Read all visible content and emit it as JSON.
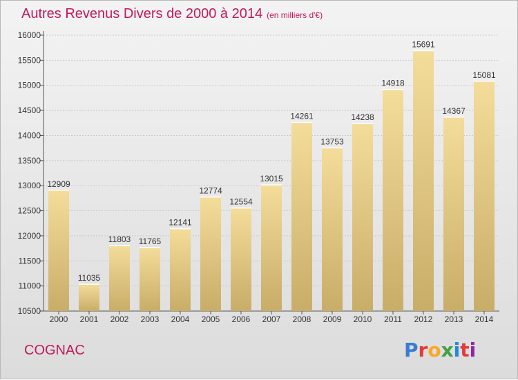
{
  "title": "Autres Revenus Divers de 2000 à 2014",
  "unit": "(en milliers d'€)",
  "city": "COGNAC",
  "brand": {
    "letters": [
      {
        "ch": "P",
        "color": "#3a7bd5"
      },
      {
        "ch": "r",
        "color": "#e53935"
      },
      {
        "ch": "o",
        "color": "#f9a825"
      },
      {
        "ch": "x",
        "color": "#43a047"
      },
      {
        "ch": "i",
        "color": "#1e88e5"
      },
      {
        "ch": "t",
        "color": "#e53935"
      },
      {
        "ch": "i",
        "color": "#8e24aa"
      }
    ]
  },
  "colors": {
    "title": "#c2185b",
    "bar_light": "#f4dc9a",
    "bar_dark": "#c8ad68",
    "grid": "#c9c9c9"
  },
  "chart_data": {
    "type": "bar",
    "categories": [
      "2000",
      "2001",
      "2002",
      "2003",
      "2004",
      "2005",
      "2006",
      "2007",
      "2008",
      "2009",
      "2010",
      "2011",
      "2012",
      "2013",
      "2014"
    ],
    "values": [
      12909,
      11035,
      11803,
      11765,
      12141,
      12774,
      12554,
      13015,
      14261,
      13753,
      14238,
      14918,
      15691,
      14367,
      15081
    ],
    "ylim": [
      10500,
      16000
    ],
    "yticks": [
      10500,
      11000,
      11500,
      12000,
      12500,
      13000,
      13500,
      14000,
      14500,
      15000,
      15500,
      16000
    ],
    "grid": true,
    "data_labels": true
  }
}
